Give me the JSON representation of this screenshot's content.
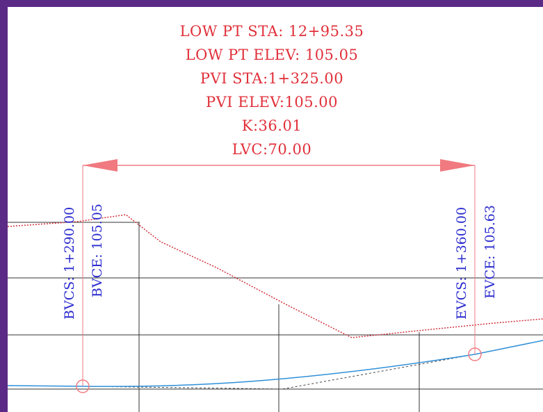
{
  "curve": {
    "low_pt_sta": "LOW PT STA: 12+95.35",
    "low_pt_elev": "LOW PT ELEV: 105.05",
    "pvi_sta": "PVI STA:1+325.00",
    "pvi_elev": "PVI ELEV:105.00",
    "k": "K:36.01",
    "lvc": "LVC:70.00"
  },
  "bvc": {
    "station": "BVCS: 1+290.00",
    "elevation": "BVCE: 105.05"
  },
  "evc": {
    "station": "EVCS: 1+360.00",
    "elevation": "EVCE: 105.63"
  },
  "colors": {
    "frame": "#5b2a86",
    "annotation_red": "#e0303a",
    "label_blue": "#2b2bcf",
    "profile_blue": "#2f8fd8",
    "dimension_red": "#f07a80",
    "grid": "#333333"
  }
}
